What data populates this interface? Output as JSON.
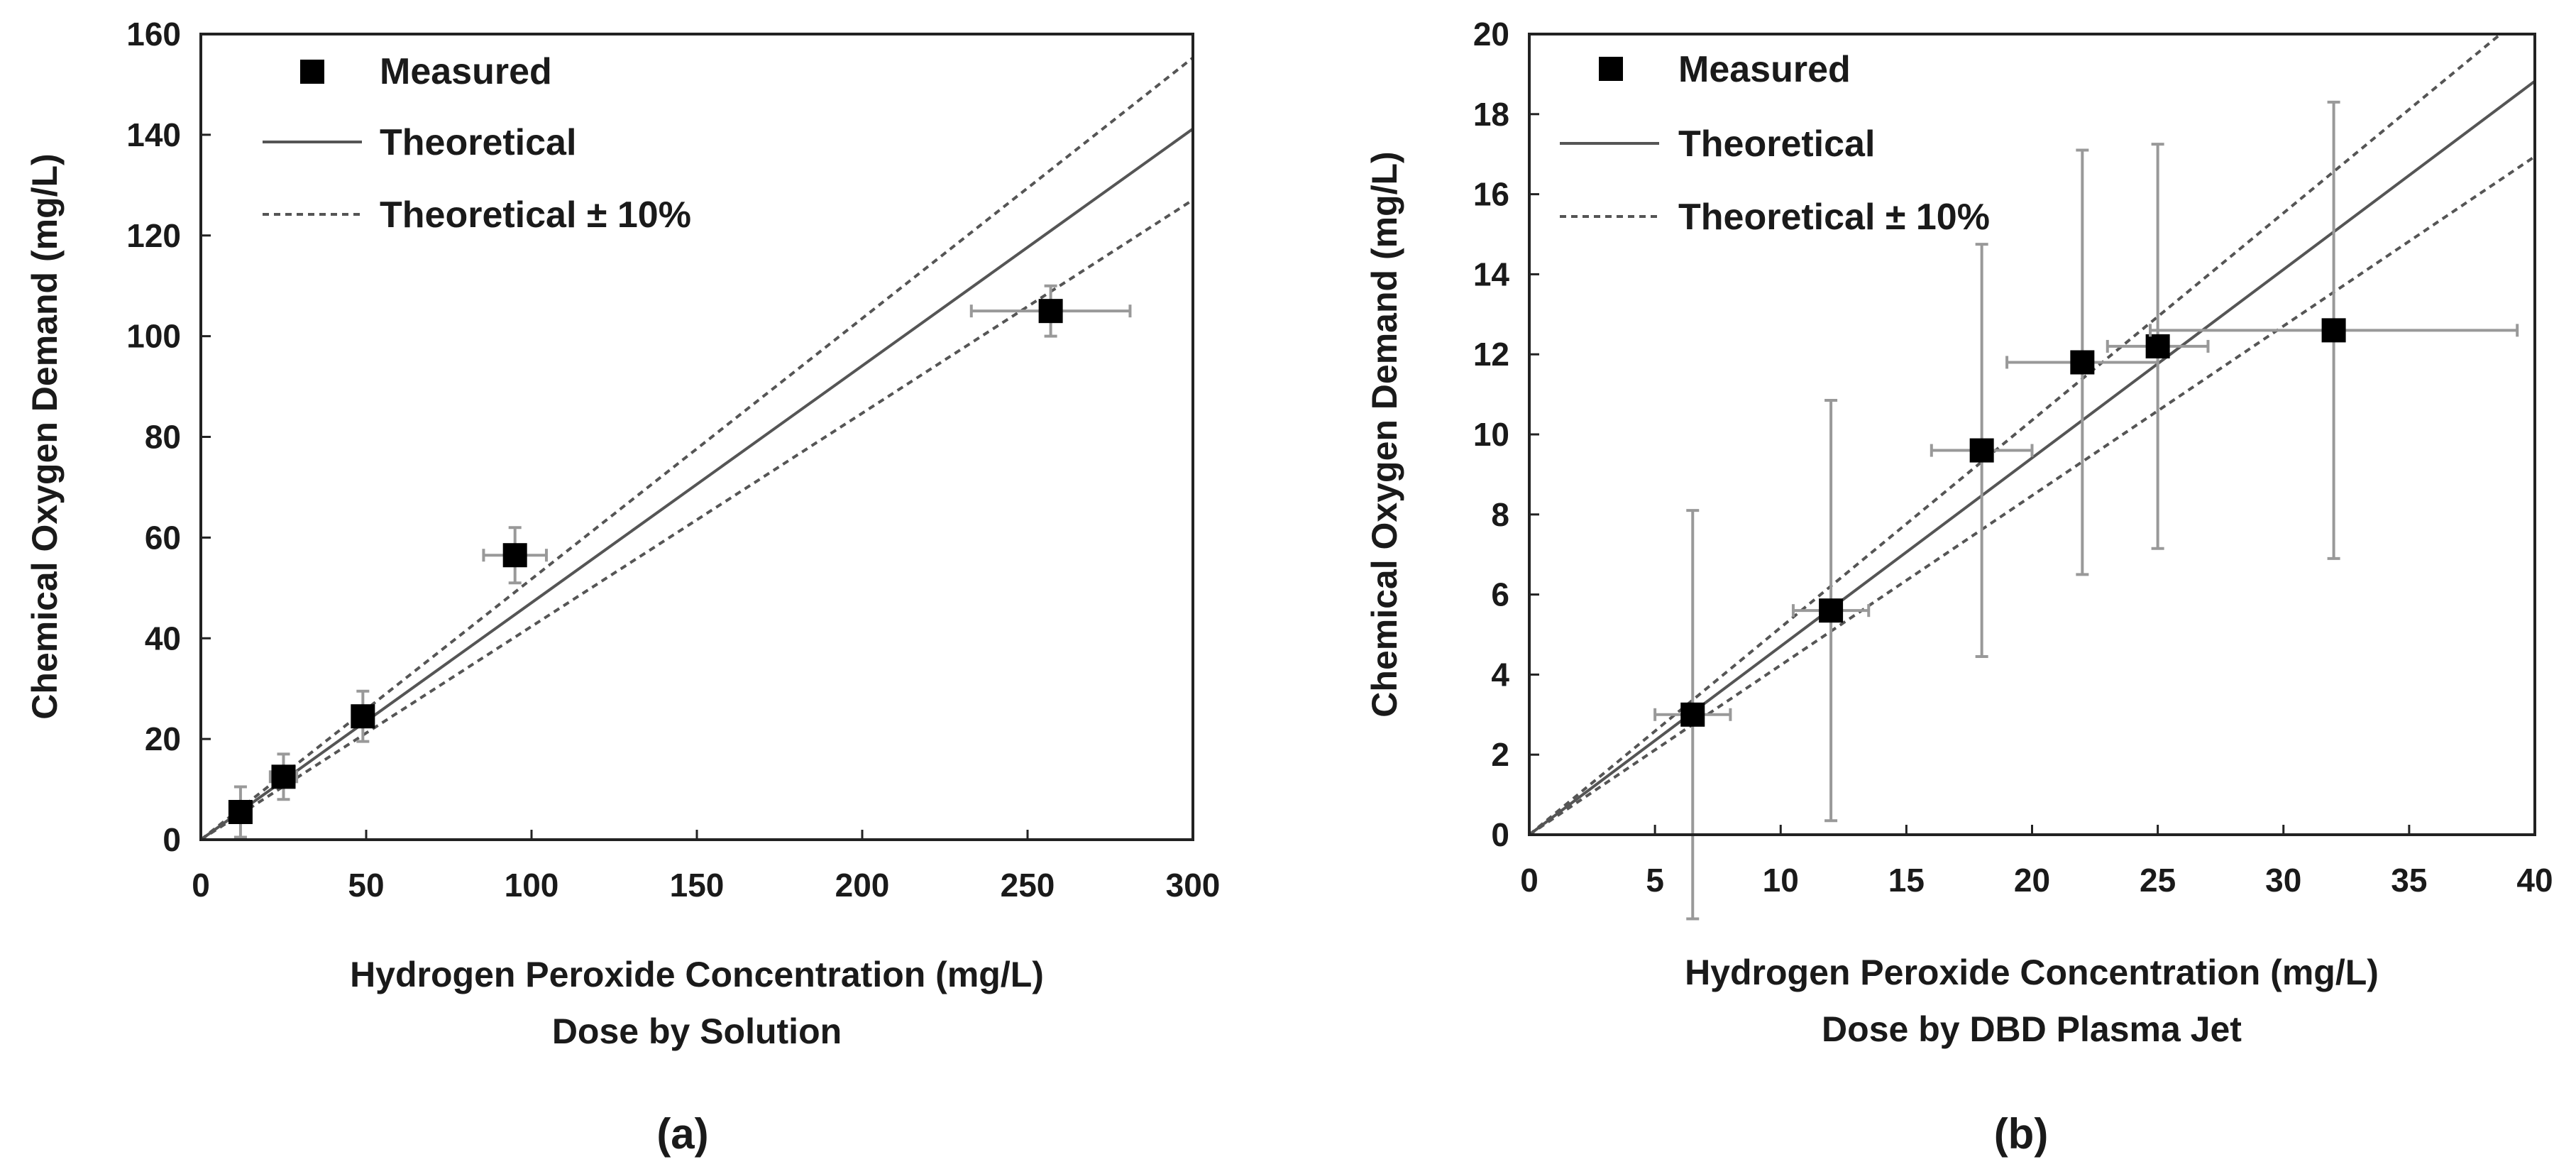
{
  "chart_data": [
    {
      "type": "scatter",
      "panel": "(a)",
      "xlabel": "Hydrogen Peroxide Concentration (mg/L)",
      "subtitle": "Dose by Solution",
      "ylabel": "Chemical Oxygen Demand (mg/L)",
      "xlim": [
        0,
        300
      ],
      "ylim": [
        0,
        160
      ],
      "xticks": [
        0,
        50,
        100,
        150,
        200,
        250,
        300
      ],
      "yticks": [
        0,
        20,
        40,
        60,
        80,
        100,
        120,
        140,
        160
      ],
      "grid": false,
      "legend": {
        "position": "top-left",
        "entries": [
          {
            "label": "Measured",
            "style": "square-marker"
          },
          {
            "label": "Theoretical",
            "style": "solid-line"
          },
          {
            "label": "Theoretical ± 10%",
            "style": "dashed-line"
          }
        ]
      },
      "theoretical": {
        "slope": 0.4706,
        "band": 0.1
      },
      "series": [
        {
          "name": "Measured",
          "points": [
            {
              "x": 12,
              "y": 5.5,
              "xerr": 3,
              "yerr": 5
            },
            {
              "x": 25,
              "y": 12.5,
              "xerr": 4,
              "yerr": 4.5
            },
            {
              "x": 49,
              "y": 24.5,
              "xerr": 3,
              "yerr": 5
            },
            {
              "x": 95,
              "y": 56.5,
              "xerr": 9.5,
              "yerr": 5.5
            },
            {
              "x": 257,
              "y": 105,
              "xerr": 24,
              "yerr": 5
            }
          ]
        }
      ]
    },
    {
      "type": "scatter",
      "panel": "(b)",
      "xlabel": "Hydrogen Peroxide Concentration (mg/L)",
      "subtitle": "Dose by DBD Plasma Jet",
      "ylabel": "Chemical Oxygen Demand (mg/L)",
      "xlim": [
        0,
        40
      ],
      "ylim": [
        0,
        20
      ],
      "xticks": [
        0,
        5,
        10,
        15,
        20,
        25,
        30,
        35,
        40
      ],
      "yticks": [
        0,
        2,
        4,
        6,
        8,
        10,
        12,
        14,
        16,
        18,
        20
      ],
      "grid": false,
      "legend": {
        "position": "top-left",
        "entries": [
          {
            "label": "Measured",
            "style": "square-marker"
          },
          {
            "label": "Theoretical",
            "style": "solid-line"
          },
          {
            "label": "Theoretical ± 10%",
            "style": "dashed-line"
          }
        ]
      },
      "theoretical": {
        "slope": 0.4706,
        "band": 0.1
      },
      "series": [
        {
          "name": "Measured",
          "points": [
            {
              "x": 6.5,
              "y": 3.0,
              "xerr": 1.5,
              "yerr": 5.1
            },
            {
              "x": 12,
              "y": 5.6,
              "xerr": 1.5,
              "yerr": 5.25
            },
            {
              "x": 18,
              "y": 9.6,
              "xerr": 2,
              "yerr": 5.15
            },
            {
              "x": 22,
              "y": 11.8,
              "xerr": 3,
              "yerr": 5.3
            },
            {
              "x": 25,
              "y": 12.2,
              "xerr": 2,
              "yerr": 5.05
            },
            {
              "x": 32,
              "y": 12.6,
              "xerr": 7.3,
              "yerr": 5.7
            }
          ]
        }
      ]
    }
  ]
}
